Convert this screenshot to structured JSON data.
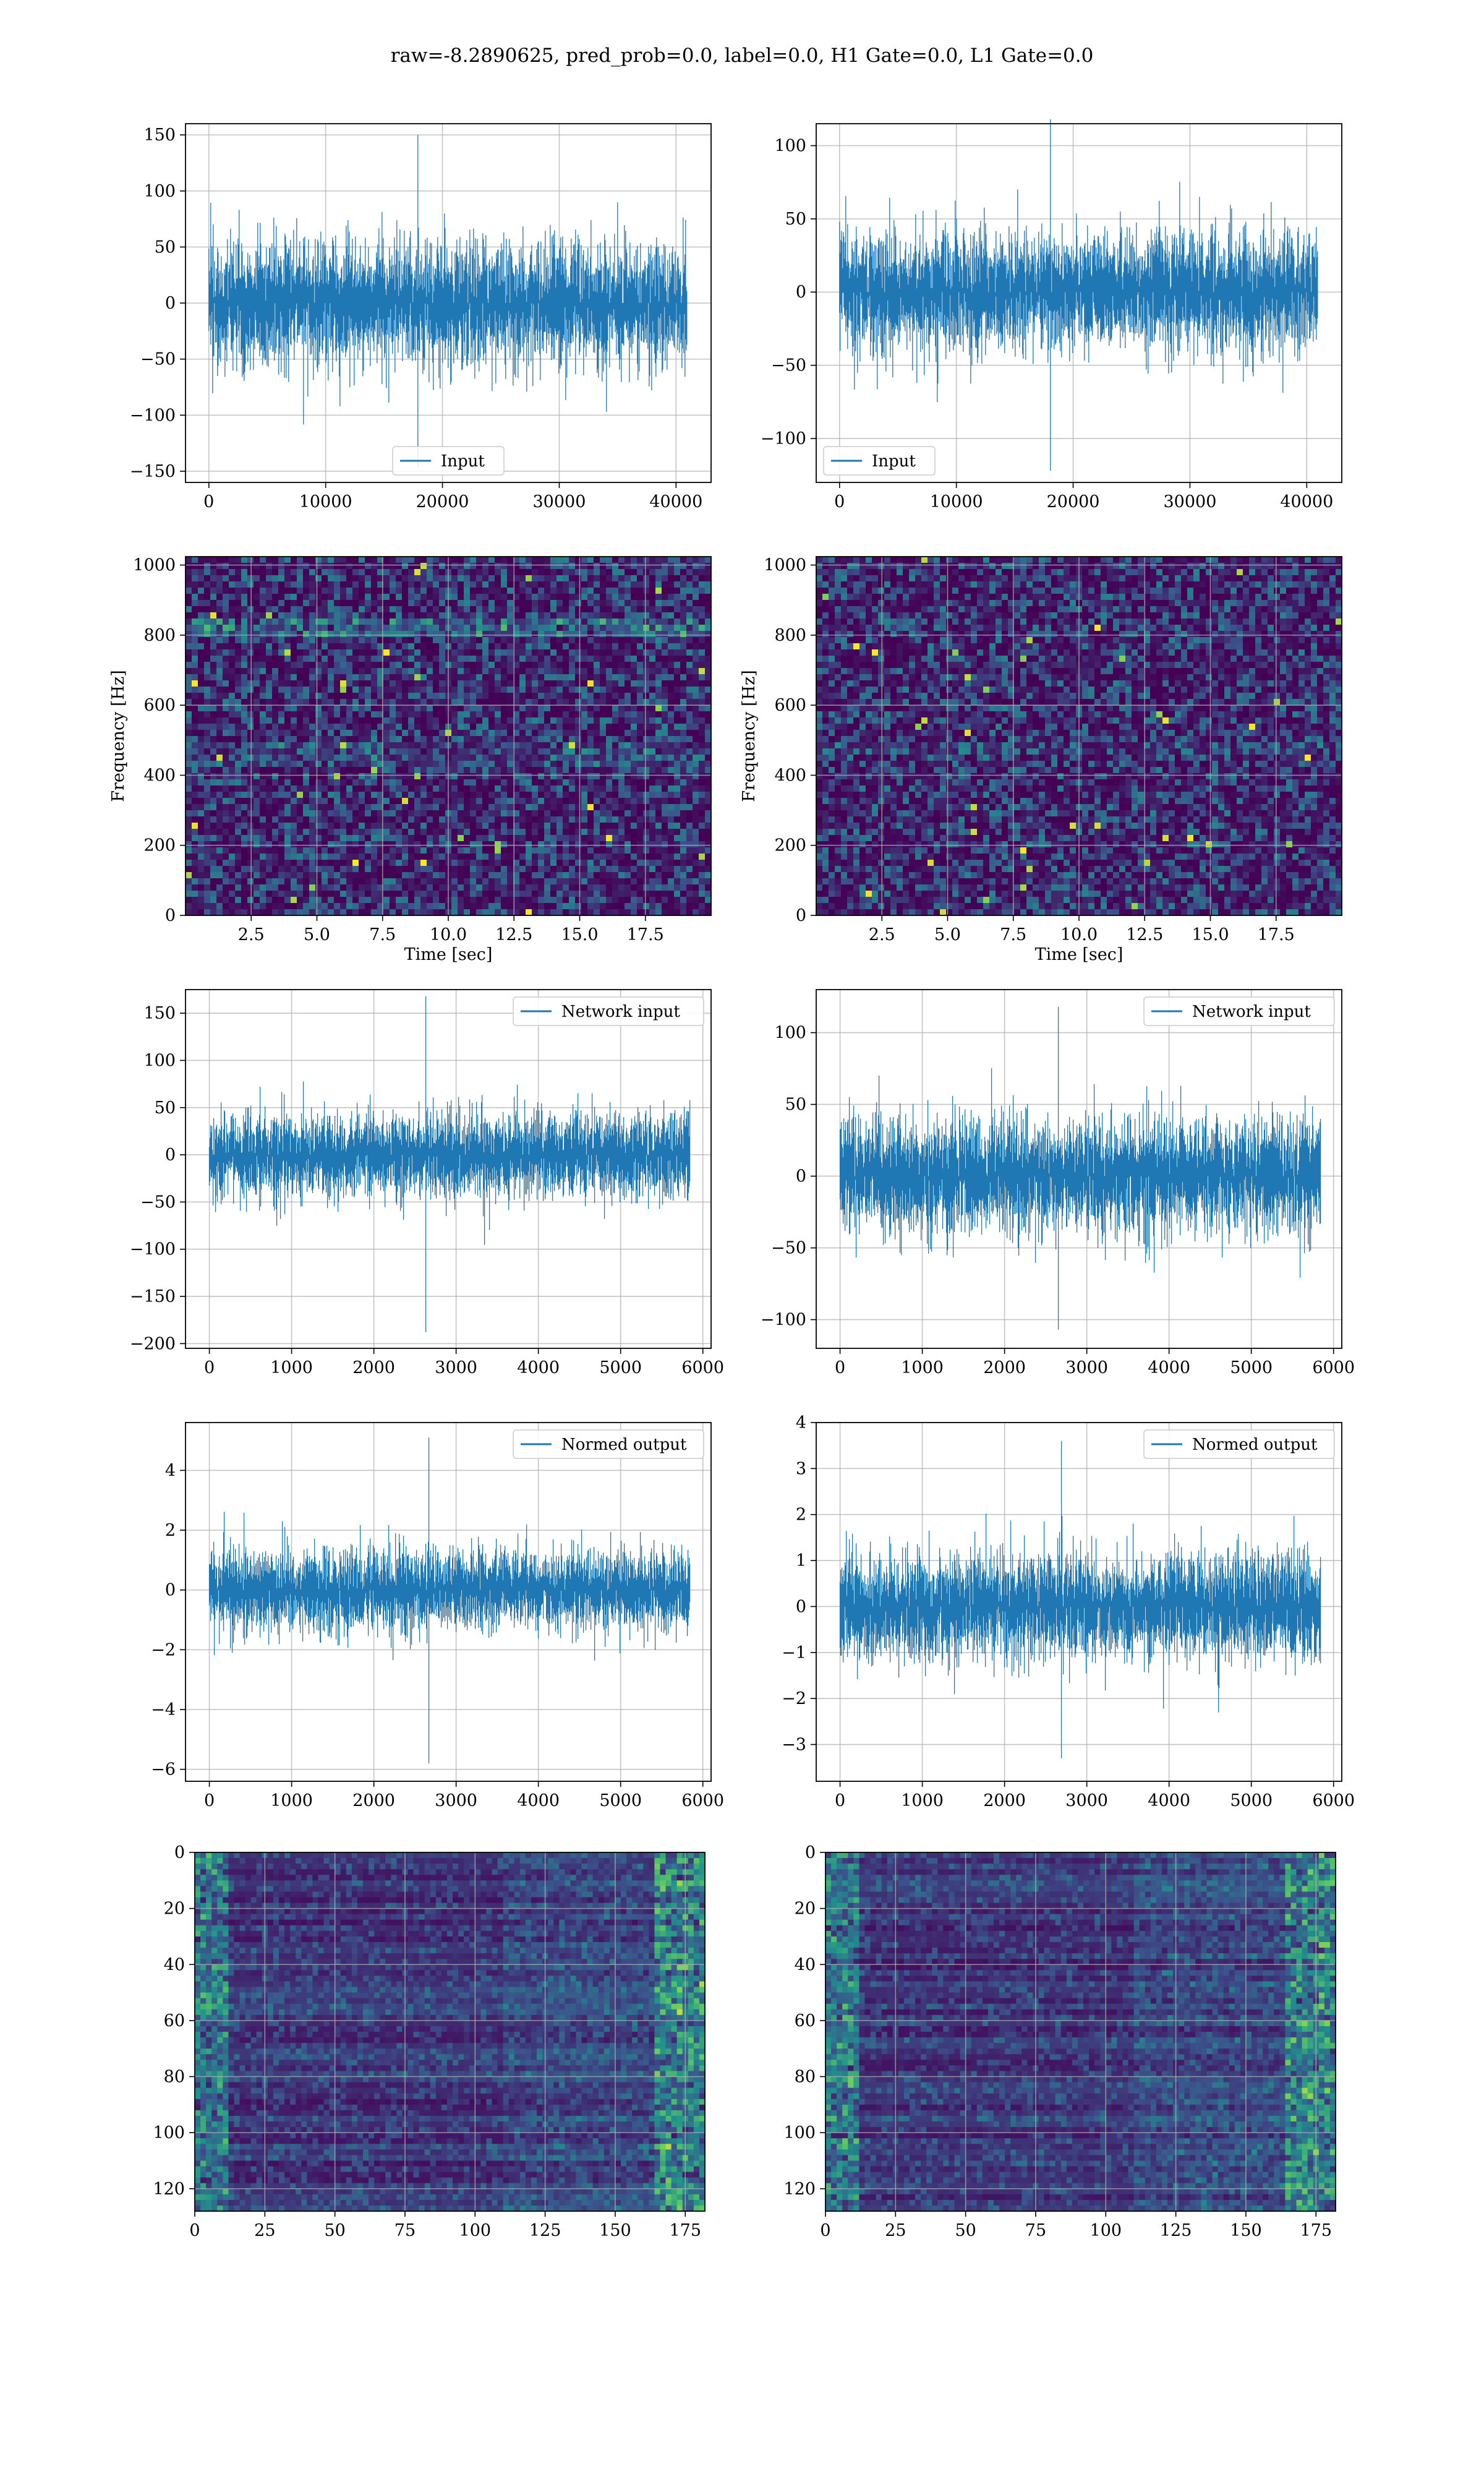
{
  "figure_title": "raw=-8.2890625, pred_prob=0.0, label=0.0, H1 Gate=0.0, L1 Gate=0.0",
  "colors": {
    "line": "#1f77b4",
    "grid": "#b0b0b0",
    "viridis_low": "#440154",
    "viridis_mid": "#21918c",
    "viridis_high": "#fde725"
  },
  "chart_data": [
    {
      "id": "p1",
      "type": "line",
      "title": "",
      "xlabel": "",
      "ylabel": "",
      "legend": "Input",
      "legend_loc": "bottom-center",
      "xlim": [
        -2000,
        43000
      ],
      "ylim": [
        -160,
        160
      ],
      "xticks": [
        0,
        10000,
        20000,
        30000,
        40000
      ],
      "xtick_labels": [
        "0",
        "10000",
        "20000",
        "30000",
        "40000"
      ],
      "yticks": [
        -150,
        -100,
        -50,
        0,
        50,
        100,
        150
      ],
      "ytick_labels": [
        "−150",
        "−100",
        "−50",
        "0",
        "50",
        "100",
        "150"
      ],
      "series": [
        {
          "name": "Input",
          "n": 40960,
          "x_range": [
            0,
            40960
          ],
          "typical_amplitude": 60,
          "max": 150,
          "min": -147
        }
      ],
      "grid": true
    },
    {
      "id": "p2",
      "type": "line",
      "title": "",
      "xlabel": "",
      "ylabel": "",
      "legend": "Input",
      "legend_loc": "bottom-left",
      "xlim": [
        -2000,
        43000
      ],
      "ylim": [
        -130,
        115
      ],
      "xticks": [
        0,
        10000,
        20000,
        30000,
        40000
      ],
      "xtick_labels": [
        "0",
        "10000",
        "20000",
        "30000",
        "40000"
      ],
      "yticks": [
        -100,
        -50,
        0,
        50,
        100
      ],
      "ytick_labels": [
        "−100",
        "−50",
        "0",
        "50",
        "100"
      ],
      "series": [
        {
          "name": "Input",
          "n": 40960,
          "x_range": [
            0,
            40960
          ],
          "typical_amplitude": 45,
          "max": 118,
          "min": -122
        }
      ],
      "grid": true
    },
    {
      "id": "p3",
      "type": "heatmap",
      "title": "",
      "xlabel": "Time [sec]",
      "ylabel": "Frequency [Hz]",
      "xlim": [
        0,
        20
      ],
      "ylim": [
        0,
        1024
      ],
      "xticks": [
        2.5,
        5.0,
        7.5,
        10.0,
        12.5,
        15.0,
        17.5
      ],
      "xtick_labels": [
        "2.5",
        "5.0",
        "7.5",
        "10.0",
        "12.5",
        "15.0",
        "17.5"
      ],
      "yticks": [
        0,
        200,
        400,
        600,
        800,
        1000
      ],
      "ytick_labels": [
        "0",
        "200",
        "400",
        "600",
        "800",
        "1000"
      ],
      "colormap": "viridis",
      "grid": true
    },
    {
      "id": "p4",
      "type": "heatmap",
      "title": "",
      "xlabel": "Time [sec]",
      "ylabel": "Frequency [Hz]",
      "xlim": [
        0,
        20
      ],
      "ylim": [
        0,
        1024
      ],
      "xticks": [
        2.5,
        5.0,
        7.5,
        10.0,
        12.5,
        15.0,
        17.5
      ],
      "xtick_labels": [
        "2.5",
        "5.0",
        "7.5",
        "10.0",
        "12.5",
        "15.0",
        "17.5"
      ],
      "yticks": [
        0,
        200,
        400,
        600,
        800,
        1000
      ],
      "ytick_labels": [
        "0",
        "200",
        "400",
        "600",
        "800",
        "1000"
      ],
      "colormap": "viridis",
      "grid": true
    },
    {
      "id": "p5",
      "type": "line",
      "title": "",
      "xlabel": "",
      "ylabel": "",
      "legend": "Network input",
      "legend_loc": "top-right",
      "xlim": [
        -290,
        6100
      ],
      "ylim": [
        -205,
        175
      ],
      "xticks": [
        0,
        1000,
        2000,
        3000,
        4000,
        5000,
        6000
      ],
      "xtick_labels": [
        "0",
        "1000",
        "2000",
        "3000",
        "4000",
        "5000",
        "6000"
      ],
      "yticks": [
        -200,
        -150,
        -100,
        -50,
        0,
        50,
        100,
        150
      ],
      "ytick_labels": [
        "−200",
        "−150",
        "−100",
        "−50",
        "0",
        "50",
        "100",
        "150"
      ],
      "series": [
        {
          "name": "Network input",
          "n": 5850,
          "x_range": [
            0,
            5850
          ],
          "typical_amplitude": 50,
          "max": 168,
          "min": -188
        }
      ],
      "grid": true
    },
    {
      "id": "p6",
      "type": "line",
      "title": "",
      "xlabel": "",
      "ylabel": "",
      "legend": "Network input",
      "legend_loc": "top-right",
      "xlim": [
        -290,
        6100
      ],
      "ylim": [
        -120,
        130
      ],
      "xticks": [
        0,
        1000,
        2000,
        3000,
        4000,
        5000,
        6000
      ],
      "xtick_labels": [
        "0",
        "1000",
        "2000",
        "3000",
        "4000",
        "5000",
        "6000"
      ],
      "yticks": [
        -100,
        -50,
        0,
        50,
        100
      ],
      "ytick_labels": [
        "−100",
        "−50",
        "0",
        "50",
        "100"
      ],
      "series": [
        {
          "name": "Network input",
          "n": 5850,
          "x_range": [
            0,
            5850
          ],
          "typical_amplitude": 45,
          "max": 118,
          "min": -107
        }
      ],
      "grid": true
    },
    {
      "id": "p7",
      "type": "line",
      "title": "",
      "xlabel": "",
      "ylabel": "",
      "legend": "Normed output",
      "legend_loc": "top-right",
      "xlim": [
        -290,
        6100
      ],
      "ylim": [
        -6.4,
        5.6
      ],
      "xticks": [
        0,
        1000,
        2000,
        3000,
        4000,
        5000,
        6000
      ],
      "xtick_labels": [
        "0",
        "1000",
        "2000",
        "3000",
        "4000",
        "5000",
        "6000"
      ],
      "yticks": [
        -6,
        -4,
        -2,
        0,
        2,
        4
      ],
      "ytick_labels": [
        "−6",
        "−4",
        "−2",
        "0",
        "2",
        "4"
      ],
      "series": [
        {
          "name": "Normed output",
          "n": 5850,
          "x_range": [
            0,
            5850
          ],
          "typical_amplitude": 1.5,
          "max": 5.1,
          "min": -5.8
        }
      ],
      "grid": true
    },
    {
      "id": "p8",
      "type": "line",
      "title": "",
      "xlabel": "",
      "ylabel": "",
      "legend": "Normed output",
      "legend_loc": "top-right",
      "xlim": [
        -290,
        6100
      ],
      "ylim": [
        -3.8,
        4.0
      ],
      "xticks": [
        0,
        1000,
        2000,
        3000,
        4000,
        5000,
        6000
      ],
      "xtick_labels": [
        "0",
        "1000",
        "2000",
        "3000",
        "4000",
        "5000",
        "6000"
      ],
      "yticks": [
        -3,
        -2,
        -1,
        0,
        1,
        2,
        3,
        4
      ],
      "ytick_labels": [
        "−3",
        "−2",
        "−1",
        "0",
        "1",
        "2",
        "3",
        "4"
      ],
      "series": [
        {
          "name": "Normed output",
          "n": 5850,
          "x_range": [
            0,
            5850
          ],
          "typical_amplitude": 1.3,
          "max": 3.6,
          "min": -3.3
        }
      ],
      "grid": true
    },
    {
      "id": "p9",
      "type": "heatmap",
      "title": "",
      "xlabel": "",
      "ylabel": "",
      "xlim": [
        0,
        182
      ],
      "ylim": [
        128,
        0
      ],
      "xticks": [
        0,
        25,
        50,
        75,
        100,
        125,
        150,
        175
      ],
      "xtick_labels": [
        "0",
        "25",
        "50",
        "75",
        "100",
        "125",
        "150",
        "175"
      ],
      "yticks": [
        0,
        20,
        40,
        60,
        80,
        100,
        120
      ],
      "ytick_labels": [
        "0",
        "20",
        "40",
        "60",
        "80",
        "100",
        "120"
      ],
      "colormap": "viridis",
      "grid": true
    },
    {
      "id": "p10",
      "type": "heatmap",
      "title": "",
      "xlabel": "",
      "ylabel": "",
      "xlim": [
        0,
        182
      ],
      "ylim": [
        128,
        0
      ],
      "xticks": [
        0,
        25,
        50,
        75,
        100,
        125,
        150,
        175
      ],
      "xtick_labels": [
        "0",
        "25",
        "50",
        "75",
        "100",
        "125",
        "150",
        "175"
      ],
      "yticks": [
        0,
        20,
        40,
        60,
        80,
        100,
        120
      ],
      "ytick_labels": [
        "0",
        "20",
        "40",
        "60",
        "80",
        "100",
        "120"
      ],
      "colormap": "viridis",
      "grid": true
    }
  ]
}
